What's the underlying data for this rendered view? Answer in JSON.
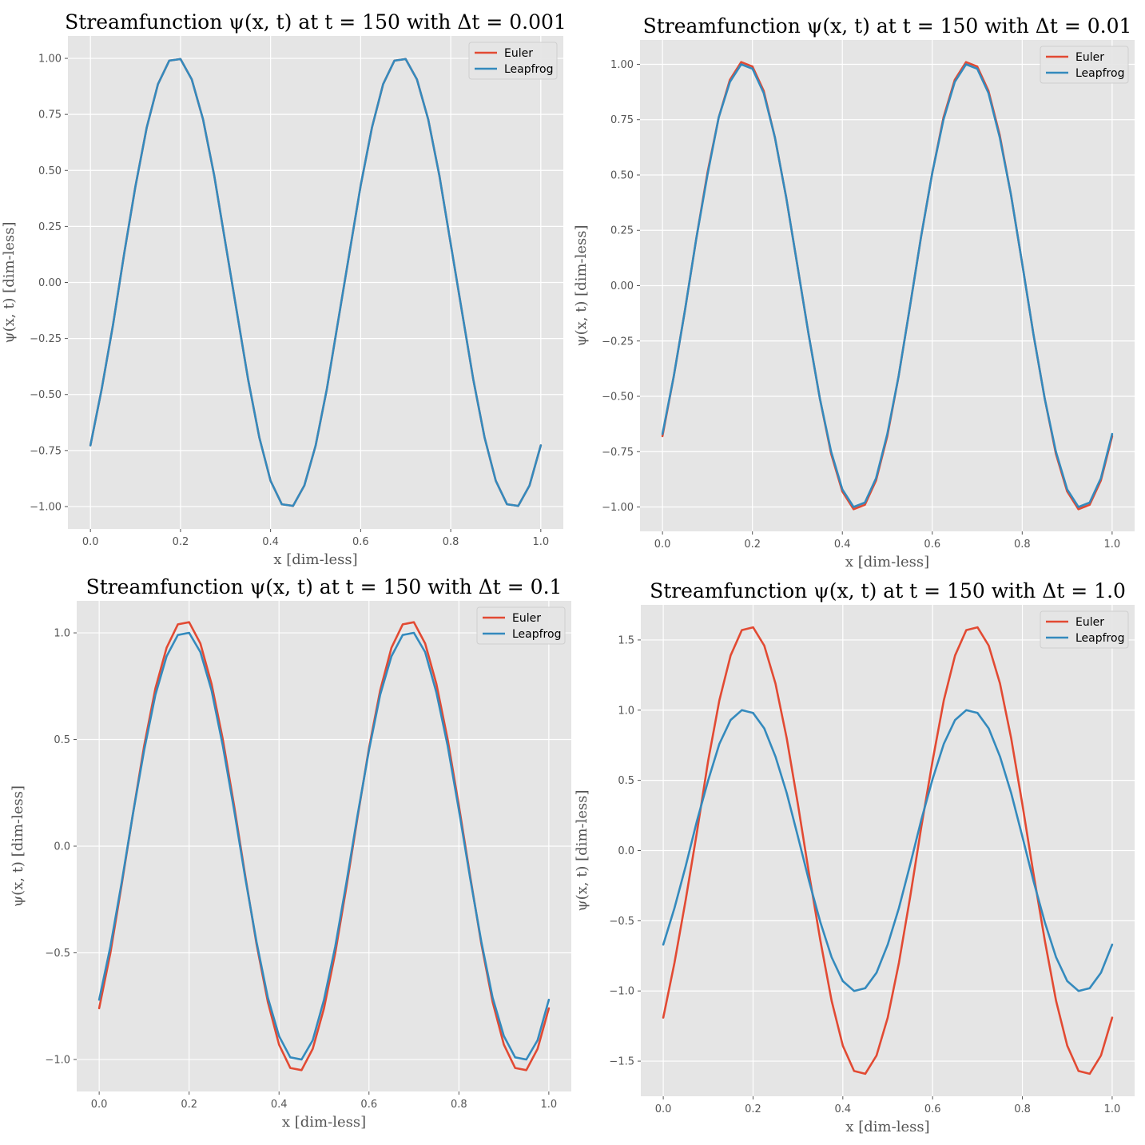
{
  "colors": {
    "euler": "#E24A33",
    "leapfrog": "#348ABD",
    "plot_bg": "#E5E5E5",
    "grid": "#FFFFFF"
  },
  "chart_data": [
    {
      "type": "line",
      "title": "Streamfunction ψ(x, t) at t = 150 with Δt = 0.001",
      "xlabel": "x [dim-less]",
      "ylabel": "ψ(x, t) [dim-less]",
      "xlim": [
        -0.05,
        1.05
      ],
      "ylim": [
        -1.1,
        1.1
      ],
      "xticks": [
        0.0,
        0.2,
        0.4,
        0.6,
        0.8,
        1.0
      ],
      "xtick_labels": [
        "0.0",
        "0.2",
        "0.4",
        "0.6",
        "0.8",
        "1.0"
      ],
      "yticks": [
        -1.0,
        -0.75,
        -0.5,
        -0.25,
        0.0,
        0.25,
        0.5,
        0.75,
        1.0
      ],
      "ytick_labels": [
        "−1.00",
        "−0.75",
        "−0.50",
        "−0.25",
        "0.00",
        "0.25",
        "0.50",
        "0.75",
        "1.00"
      ],
      "grid": true,
      "legend_position": "top-right",
      "x": [
        0,
        0.025,
        0.05,
        0.075,
        0.1,
        0.125,
        0.15,
        0.175,
        0.2,
        0.225,
        0.25,
        0.275,
        0.3,
        0.325,
        0.35,
        0.375,
        0.4,
        0.425,
        0.45,
        0.475,
        0.5,
        0.525,
        0.55,
        0.575,
        0.6,
        0.625,
        0.65,
        0.675,
        0.7,
        0.725,
        0.75,
        0.775,
        0.8,
        0.825,
        0.85,
        0.875,
        0.9,
        0.925,
        0.95,
        0.975,
        1.0
      ],
      "series": [
        {
          "name": "Euler",
          "color": "#E24A33",
          "values": [
            -0.727,
            -0.475,
            -0.19,
            0.131,
            0.429,
            0.691,
            0.885,
            0.99,
            0.997,
            0.906,
            0.728,
            0.475,
            0.172,
            -0.131,
            -0.432,
            -0.691,
            -0.885,
            -0.99,
            -0.997,
            -0.906,
            -0.728,
            -0.475,
            -0.172,
            0.131,
            0.432,
            0.691,
            0.885,
            0.99,
            0.997,
            0.906,
            0.728,
            0.475,
            0.172,
            -0.131,
            -0.432,
            -0.691,
            -0.885,
            -0.99,
            -0.997,
            -0.906,
            -0.727
          ]
        },
        {
          "name": "Leapfrog",
          "color": "#348ABD",
          "values": [
            -0.727,
            -0.475,
            -0.19,
            0.131,
            0.429,
            0.691,
            0.885,
            0.99,
            0.997,
            0.906,
            0.728,
            0.475,
            0.172,
            -0.131,
            -0.432,
            -0.691,
            -0.885,
            -0.99,
            -0.997,
            -0.906,
            -0.728,
            -0.475,
            -0.172,
            0.131,
            0.432,
            0.691,
            0.885,
            0.99,
            0.997,
            0.906,
            0.728,
            0.475,
            0.172,
            -0.131,
            -0.432,
            -0.691,
            -0.885,
            -0.99,
            -0.997,
            -0.906,
            -0.727
          ]
        }
      ]
    },
    {
      "type": "line",
      "title": "Streamfunction ψ(x, t) at t = 150 with Δt = 0.01",
      "xlabel": "x [dim-less]",
      "ylabel": "ψ(x, t) [dim-less]",
      "xlim": [
        -0.05,
        1.05
      ],
      "ylim": [
        -1.11,
        1.11
      ],
      "xticks": [
        0.0,
        0.2,
        0.4,
        0.6,
        0.8,
        1.0
      ],
      "xtick_labels": [
        "0.0",
        "0.2",
        "0.4",
        "0.6",
        "0.8",
        "1.0"
      ],
      "yticks": [
        -1.0,
        -0.75,
        -0.5,
        -0.25,
        0.0,
        0.25,
        0.5,
        0.75,
        1.0
      ],
      "ytick_labels": [
        "−1.00",
        "−0.75",
        "−0.50",
        "−0.25",
        "0.00",
        "0.25",
        "0.50",
        "0.75",
        "1.00"
      ],
      "grid": true,
      "legend_position": "top-right",
      "x": [
        0,
        0.025,
        0.05,
        0.075,
        0.1,
        0.125,
        0.15,
        0.175,
        0.2,
        0.225,
        0.25,
        0.275,
        0.3,
        0.325,
        0.35,
        0.375,
        0.4,
        0.425,
        0.45,
        0.475,
        0.5,
        0.525,
        0.55,
        0.575,
        0.6,
        0.625,
        0.65,
        0.675,
        0.7,
        0.725,
        0.75,
        0.775,
        0.8,
        0.825,
        0.85,
        0.875,
        0.9,
        0.925,
        0.95,
        0.975,
        1.0
      ],
      "series": [
        {
          "name": "Euler",
          "color": "#E24A33",
          "values": [
            -0.68,
            -0.41,
            -0.11,
            0.21,
            0.51,
            0.76,
            0.93,
            1.01,
            0.99,
            0.88,
            0.67,
            0.4,
            0.09,
            -0.22,
            -0.51,
            -0.76,
            -0.93,
            -1.01,
            -0.99,
            -0.88,
            -0.68,
            -0.41,
            -0.1,
            0.22,
            0.51,
            0.76,
            0.93,
            1.01,
            0.99,
            0.88,
            0.68,
            0.41,
            0.1,
            -0.22,
            -0.51,
            -0.76,
            -0.93,
            -1.01,
            -0.99,
            -0.88,
            -0.68
          ]
        },
        {
          "name": "Leapfrog",
          "color": "#348ABD",
          "values": [
            -0.67,
            -0.41,
            -0.11,
            0.21,
            0.5,
            0.76,
            0.92,
            1.0,
            0.98,
            0.87,
            0.67,
            0.4,
            0.09,
            -0.22,
            -0.51,
            -0.75,
            -0.92,
            -1.0,
            -0.98,
            -0.87,
            -0.67,
            -0.41,
            -0.1,
            0.22,
            0.51,
            0.75,
            0.92,
            1.0,
            0.98,
            0.87,
            0.67,
            0.41,
            0.1,
            -0.22,
            -0.51,
            -0.75,
            -0.92,
            -1.0,
            -0.98,
            -0.87,
            -0.67
          ]
        }
      ]
    },
    {
      "type": "line",
      "title": "Streamfunction ψ(x, t) at t = 150 with Δt = 0.1",
      "xlabel": "x [dim-less]",
      "ylabel": "ψ(x, t) [dim-less]",
      "xlim": [
        -0.05,
        1.05
      ],
      "ylim": [
        -1.15,
        1.15
      ],
      "xticks": [
        0.0,
        0.2,
        0.4,
        0.6,
        0.8,
        1.0
      ],
      "xtick_labels": [
        "0.0",
        "0.2",
        "0.4",
        "0.6",
        "0.8",
        "1.0"
      ],
      "yticks": [
        -1.0,
        -0.5,
        0.0,
        0.5,
        1.0
      ],
      "ytick_labels": [
        "−1.0",
        "−0.5",
        "0.0",
        "0.5",
        "1.0"
      ],
      "grid": true,
      "legend_position": "top-right",
      "x": [
        0,
        0.025,
        0.05,
        0.075,
        0.1,
        0.125,
        0.15,
        0.175,
        0.2,
        0.225,
        0.25,
        0.275,
        0.3,
        0.325,
        0.35,
        0.375,
        0.4,
        0.425,
        0.45,
        0.475,
        0.5,
        0.525,
        0.55,
        0.575,
        0.6,
        0.625,
        0.65,
        0.675,
        0.7,
        0.725,
        0.75,
        0.775,
        0.8,
        0.825,
        0.85,
        0.875,
        0.9,
        0.925,
        0.95,
        0.975,
        1.0
      ],
      "series": [
        {
          "name": "Euler",
          "color": "#E24A33",
          "values": [
            -0.76,
            -0.5,
            -0.18,
            0.15,
            0.47,
            0.74,
            0.93,
            1.04,
            1.05,
            0.95,
            0.76,
            0.5,
            0.19,
            -0.14,
            -0.46,
            -0.73,
            -0.93,
            -1.04,
            -1.05,
            -0.95,
            -0.76,
            -0.5,
            -0.19,
            0.14,
            0.46,
            0.73,
            0.93,
            1.04,
            1.05,
            0.95,
            0.76,
            0.5,
            0.19,
            -0.14,
            -0.46,
            -0.73,
            -0.93,
            -1.04,
            -1.05,
            -0.95,
            -0.76
          ]
        },
        {
          "name": "Leapfrog",
          "color": "#348ABD",
          "values": [
            -0.72,
            -0.47,
            -0.17,
            0.15,
            0.45,
            0.71,
            0.89,
            0.99,
            1.0,
            0.91,
            0.73,
            0.47,
            0.17,
            -0.15,
            -0.45,
            -0.71,
            -0.89,
            -0.99,
            -1.0,
            -0.91,
            -0.72,
            -0.47,
            -0.17,
            0.15,
            0.45,
            0.71,
            0.89,
            0.99,
            1.0,
            0.91,
            0.72,
            0.47,
            0.17,
            -0.15,
            -0.45,
            -0.71,
            -0.89,
            -0.99,
            -1.0,
            -0.91,
            -0.72
          ]
        }
      ]
    },
    {
      "type": "line",
      "title": "Streamfunction ψ(x, t) at t = 150 with Δt = 1.0",
      "xlabel": "x [dim-less]",
      "ylabel": "ψ(x, t) [dim-less]",
      "xlim": [
        -0.05,
        1.05
      ],
      "ylim": [
        -1.75,
        1.75
      ],
      "xticks": [
        0.0,
        0.2,
        0.4,
        0.6,
        0.8,
        1.0
      ],
      "xtick_labels": [
        "0.0",
        "0.2",
        "0.4",
        "0.6",
        "0.8",
        "1.0"
      ],
      "yticks": [
        -1.5,
        -1.0,
        -0.5,
        0.0,
        0.5,
        1.0,
        1.5
      ],
      "ytick_labels": [
        "−1.5",
        "−1.0",
        "−0.5",
        "0.0",
        "0.5",
        "1.0",
        "1.5"
      ],
      "grid": true,
      "legend_position": "top-right",
      "x": [
        0,
        0.025,
        0.05,
        0.075,
        0.1,
        0.125,
        0.15,
        0.175,
        0.2,
        0.225,
        0.25,
        0.275,
        0.3,
        0.325,
        0.35,
        0.375,
        0.4,
        0.425,
        0.45,
        0.475,
        0.5,
        0.525,
        0.55,
        0.575,
        0.6,
        0.625,
        0.65,
        0.675,
        0.7,
        0.725,
        0.75,
        0.775,
        0.8,
        0.825,
        0.85,
        0.875,
        0.9,
        0.925,
        0.95,
        0.975,
        1.0
      ],
      "series": [
        {
          "name": "Euler",
          "color": "#E24A33",
          "values": [
            -1.19,
            -0.8,
            -0.35,
            0.13,
            0.64,
            1.07,
            1.39,
            1.57,
            1.59,
            1.46,
            1.19,
            0.8,
            0.33,
            -0.17,
            -0.64,
            -1.07,
            -1.39,
            -1.57,
            -1.59,
            -1.46,
            -1.19,
            -0.8,
            -0.33,
            0.17,
            0.64,
            1.07,
            1.39,
            1.57,
            1.59,
            1.46,
            1.19,
            0.8,
            0.33,
            -0.17,
            -0.64,
            -1.07,
            -1.39,
            -1.57,
            -1.59,
            -1.46,
            -1.19
          ]
        },
        {
          "name": "Leapfrog",
          "color": "#348ABD",
          "values": [
            -0.67,
            -0.41,
            -0.11,
            0.21,
            0.5,
            0.76,
            0.93,
            1.0,
            0.98,
            0.87,
            0.67,
            0.41,
            0.1,
            -0.22,
            -0.51,
            -0.76,
            -0.93,
            -1.0,
            -0.98,
            -0.87,
            -0.67,
            -0.41,
            -0.1,
            0.22,
            0.51,
            0.76,
            0.93,
            1.0,
            0.98,
            0.87,
            0.67,
            0.41,
            0.1,
            -0.22,
            -0.51,
            -0.76,
            -0.93,
            -1.0,
            -0.98,
            -0.87,
            -0.67
          ]
        }
      ]
    }
  ]
}
